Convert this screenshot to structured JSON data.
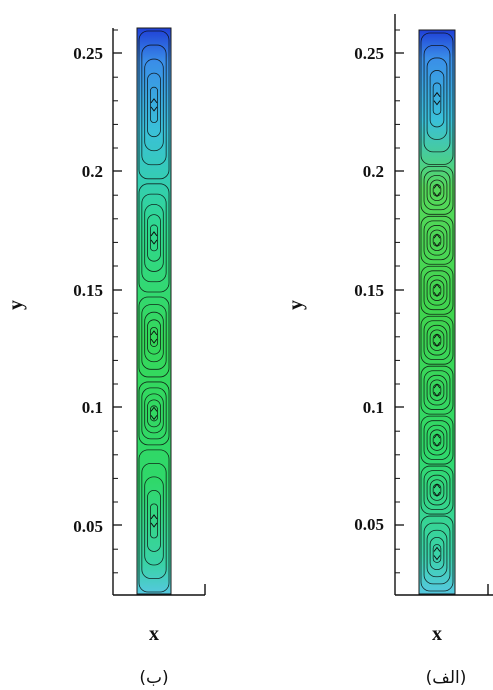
{
  "panels": [
    {
      "id": "b",
      "label": "(ب)",
      "xlabel": "x",
      "ylabel": "y",
      "yticks": [
        "0.25",
        "0.2",
        "0.15",
        "0.1",
        "0.05"
      ],
      "vortex_count": 5
    },
    {
      "id": "alef",
      "label": "(الف)",
      "xlabel": "x",
      "ylabel": "y",
      "yticks": [
        "0.25",
        "0.2",
        "0.15",
        "0.1",
        "0.05"
      ],
      "vortex_count": 9
    }
  ],
  "colors": {
    "top": "#1f3fd6",
    "upper": "#3aa5e8",
    "upper_mid": "#25d0a8",
    "middle": "#2fd86a",
    "lower": "#3fd44e",
    "bottom": "#55c8e0",
    "streamline": "#0b0b0b"
  }
}
